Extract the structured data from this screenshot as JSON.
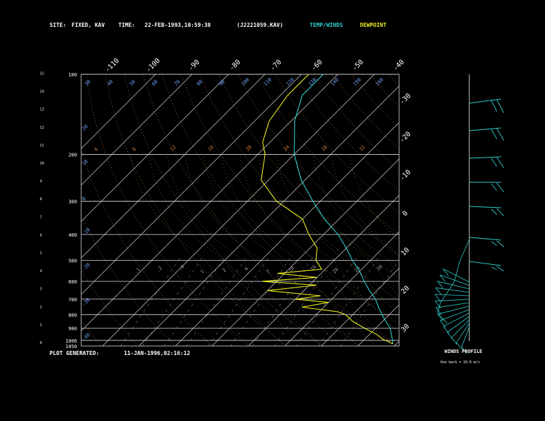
{
  "header": {
    "site_label": "SITE:",
    "site_value": "FIXED, KAV",
    "time_label": "TIME:",
    "time_value": "22-FEB-1993,10:59:38",
    "file_id": "(J2221059.KAV)",
    "legend_temp": "TEMP/WINDS",
    "legend_dew": "DEWPOINT",
    "temp_color": "#2fd0d0",
    "dew_color": "#f0f020"
  },
  "footer": {
    "generated_label": "PLOT GENERATED:",
    "generated_value": "11-JAN-1996,02:16:12"
  },
  "winds": {
    "title": "WINDS PROFILE",
    "note": "One barb = 10.0 m/s"
  },
  "chart_data": {
    "type": "skew-t",
    "title": "",
    "pressure_levels_hpa": [
      100,
      200,
      300,
      400,
      500,
      600,
      700,
      800,
      900,
      1000,
      1050
    ],
    "height_ticks_km": [
      "0",
      "1",
      "2",
      "3",
      "4",
      "5",
      "6",
      "7",
      "8",
      "9",
      "10",
      "11",
      "12",
      "13",
      "14",
      "15"
    ],
    "isotherm_top_labels": [
      "-110",
      "-100",
      "-90",
      "-80",
      "-70",
      "-60",
      "-50",
      "-40"
    ],
    "isotherm_side_labels": [
      "-30",
      "-20",
      "-10",
      "0",
      "10",
      "20",
      "30"
    ],
    "theta_top_labels": [
      "30",
      "40",
      "50",
      "60",
      "70",
      "80",
      "90",
      "100",
      "110",
      "120",
      "130",
      "140",
      "150",
      "160"
    ],
    "theta_left_labels": [
      "20",
      "10",
      "0",
      "-10",
      "-20",
      "-30",
      "-40"
    ],
    "mixing_ratio_labels": [
      ".1",
      ".2",
      ".4",
      "1",
      "2",
      "4",
      "7",
      "10",
      "16",
      "20",
      "24",
      "30"
    ],
    "temperature_profile": [
      {
        "p": 100,
        "t": -84
      },
      {
        "p": 120,
        "t": -84
      },
      {
        "p": 150,
        "t": -79
      },
      {
        "p": 200,
        "t": -70
      },
      {
        "p": 250,
        "t": -61
      },
      {
        "p": 300,
        "t": -52
      },
      {
        "p": 350,
        "t": -44
      },
      {
        "p": 400,
        "t": -36
      },
      {
        "p": 450,
        "t": -30
      },
      {
        "p": 500,
        "t": -25
      },
      {
        "p": 550,
        "t": -20
      },
      {
        "p": 600,
        "t": -16
      },
      {
        "p": 650,
        "t": -12
      },
      {
        "p": 700,
        "t": -8
      },
      {
        "p": 750,
        "t": -5
      },
      {
        "p": 800,
        "t": -2
      },
      {
        "p": 850,
        "t": 1
      },
      {
        "p": 900,
        "t": 4
      },
      {
        "p": 950,
        "t": 6
      },
      {
        "p": 1000,
        "t": 8
      },
      {
        "p": 1030,
        "t": 9
      }
    ],
    "dewpoint_profile": [
      {
        "p": 100,
        "t": -88
      },
      {
        "p": 120,
        "t": -88
      },
      {
        "p": 150,
        "t": -86
      },
      {
        "p": 180,
        "t": -82
      },
      {
        "p": 200,
        "t": -78
      },
      {
        "p": 250,
        "t": -72
      },
      {
        "p": 300,
        "t": -62
      },
      {
        "p": 350,
        "t": -50
      },
      {
        "p": 400,
        "t": -44
      },
      {
        "p": 450,
        "t": -38
      },
      {
        "p": 500,
        "t": -35
      },
      {
        "p": 540,
        "t": -31
      },
      {
        "p": 560,
        "t": -42
      },
      {
        "p": 580,
        "t": -30
      },
      {
        "p": 600,
        "t": -44
      },
      {
        "p": 620,
        "t": -28
      },
      {
        "p": 650,
        "t": -40
      },
      {
        "p": 680,
        "t": -24
      },
      {
        "p": 700,
        "t": -30
      },
      {
        "p": 720,
        "t": -20
      },
      {
        "p": 750,
        "t": -26
      },
      {
        "p": 780,
        "t": -15
      },
      {
        "p": 800,
        "t": -12
      },
      {
        "p": 850,
        "t": -8
      },
      {
        "p": 900,
        "t": -3
      },
      {
        "p": 950,
        "t": 2
      },
      {
        "p": 990,
        "t": 5
      },
      {
        "p": 1000,
        "t": 6
      },
      {
        "p": 1030,
        "t": 9
      }
    ]
  }
}
